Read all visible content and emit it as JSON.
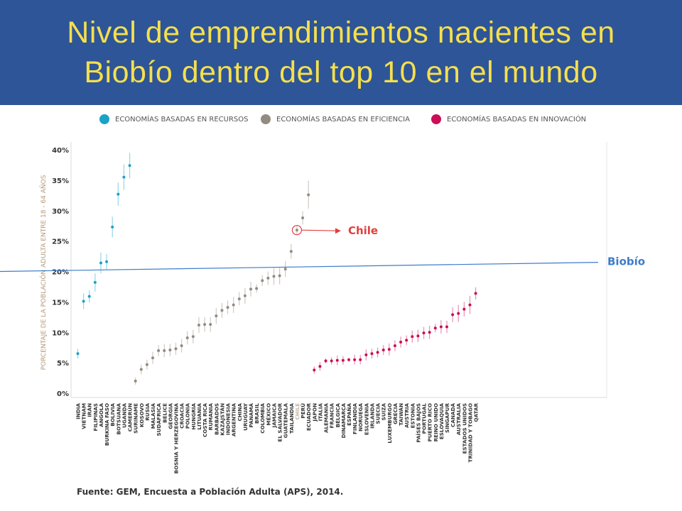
{
  "title_line1": "Nivel de emprendimientos nacientes en",
  "title_line2": "Biobío dentro del top 10 en el mundo",
  "legend": [
    {
      "label": "ECONOMÍAS BASADAS EN RECURSOS",
      "color": "#1aa3c6"
    },
    {
      "label": "ECONOMÍAS BASADAS EN EFICIENCIA",
      "color": "#948b80"
    },
    {
      "label": "ECONOMÍAS BASADAS EN INNOVACIÓN",
      "color": "#cc0e55"
    }
  ],
  "source": "Fuente: GEM, Encuesta a Población Adulta (APS), 2014.",
  "chart_data": {
    "type": "scatter",
    "ylabel": "PORCENTAJE DE LA POBLACIÓN ADULTA ENTRE 18 - 64 AÑOS",
    "ylim": [
      0,
      40
    ],
    "yticks": [
      "0%",
      "5%",
      "10%",
      "15%",
      "20%",
      "25%",
      "30%",
      "35%",
      "40%"
    ],
    "legend_position": "top",
    "series": [
      {
        "name": "ECONOMÍAS BASADAS EN RECURSOS",
        "color": "#1aa3c6",
        "points": [
          {
            "label": "INDIA",
            "value": 6.5,
            "low": 5.7,
            "high": 7.3
          },
          {
            "label": "VIETNAM",
            "value": 15.1,
            "low": 13.8,
            "high": 16.4
          },
          {
            "label": "IRÁN",
            "value": 15.9,
            "low": 14.9,
            "high": 16.9
          },
          {
            "label": "FILIPINAS",
            "value": 18.2,
            "low": 16.7,
            "high": 19.7
          },
          {
            "label": "ANGOLA",
            "value": 21.4,
            "low": 19.7,
            "high": 23.1
          },
          {
            "label": "BURKINA FASO",
            "value": 21.6,
            "low": 20.3,
            "high": 22.9
          },
          {
            "label": "BOLIVIA",
            "value": 27.3,
            "low": 25.6,
            "high": 29.0
          },
          {
            "label": "BOTSUANA",
            "value": 32.7,
            "low": 30.8,
            "high": 34.6
          },
          {
            "label": "UGANDA",
            "value": 35.5,
            "low": 33.4,
            "high": 37.6
          },
          {
            "label": "CAMERÚN",
            "value": 37.4,
            "low": 35.3,
            "high": 39.5
          }
        ]
      },
      {
        "name": "ECONOMÍAS BASADAS EN EFICIENCIA",
        "color": "#948b80",
        "points": [
          {
            "label": "SURINAME",
            "value": 2.0,
            "low": 1.4,
            "high": 2.6
          },
          {
            "label": "KOSOVO",
            "value": 3.9,
            "low": 3.1,
            "high": 4.7
          },
          {
            "label": "RUSIA",
            "value": 4.7,
            "low": 3.9,
            "high": 5.5
          },
          {
            "label": "MALASIA",
            "value": 5.8,
            "low": 4.8,
            "high": 6.8
          },
          {
            "label": "SUDÁFRICA",
            "value": 7.0,
            "low": 6.1,
            "high": 7.9
          },
          {
            "label": "BELICE",
            "value": 7.0,
            "low": 5.9,
            "high": 8.1
          },
          {
            "label": "GEORGIA",
            "value": 7.1,
            "low": 6.1,
            "high": 8.1
          },
          {
            "label": "BOSNIA Y HERZEGOVINA",
            "value": 7.3,
            "low": 6.3,
            "high": 8.3
          },
          {
            "label": "CROACIA",
            "value": 7.8,
            "low": 6.7,
            "high": 8.9
          },
          {
            "label": "POLONIA",
            "value": 9.1,
            "low": 8.0,
            "high": 10.2
          },
          {
            "label": "HUNGRÍA",
            "value": 9.3,
            "low": 8.2,
            "high": 10.4
          },
          {
            "label": "LITUANIA",
            "value": 11.2,
            "low": 9.9,
            "high": 12.5
          },
          {
            "label": "COSTA RICA",
            "value": 11.3,
            "low": 10.1,
            "high": 12.5
          },
          {
            "label": "RUMANIA",
            "value": 11.3,
            "low": 10.1,
            "high": 12.5
          },
          {
            "label": "BARBADOS",
            "value": 12.7,
            "low": 11.4,
            "high": 14.0
          },
          {
            "label": "KAZAJSTÁN",
            "value": 13.6,
            "low": 12.4,
            "high": 14.8
          },
          {
            "label": "INDONESIA",
            "value": 14.1,
            "low": 13.0,
            "high": 15.2
          },
          {
            "label": "ARGENTINA",
            "value": 14.5,
            "low": 13.2,
            "high": 15.8
          },
          {
            "label": "CHINA",
            "value": 15.5,
            "low": 14.4,
            "high": 16.6
          },
          {
            "label": "URUGUAY",
            "value": 16.0,
            "low": 14.7,
            "high": 17.3
          },
          {
            "label": "PANAMÁ",
            "value": 17.1,
            "low": 15.9,
            "high": 18.3
          },
          {
            "label": "BRASIL",
            "value": 17.2,
            "low": 16.5,
            "high": 17.9
          },
          {
            "label": "COLOMBIA",
            "value": 18.5,
            "low": 17.6,
            "high": 19.4
          },
          {
            "label": "MÉXICO",
            "value": 18.9,
            "low": 17.8,
            "high": 20.0
          },
          {
            "label": "JAMAICA",
            "value": 19.2,
            "low": 17.8,
            "high": 20.6
          },
          {
            "label": "EL SALVADOR",
            "value": 19.3,
            "low": 17.9,
            "high": 20.7
          },
          {
            "label": "GUATEMALA",
            "value": 20.4,
            "low": 19.1,
            "high": 21.7
          },
          {
            "label": "TAILANDIA",
            "value": 23.3,
            "low": 22.1,
            "high": 24.5
          },
          {
            "label": "CHILE",
            "value": 26.8,
            "low": 26.1,
            "high": 27.5
          },
          {
            "label": "PERÚ",
            "value": 28.8,
            "low": 27.7,
            "high": 29.9
          },
          {
            "label": "ECUADOR",
            "value": 32.6,
            "low": 30.3,
            "high": 34.9
          }
        ]
      },
      {
        "name": "ECONOMÍAS BASADAS EN INNOVACIÓN",
        "color": "#cc0e55",
        "points": [
          {
            "label": "JAPÓN",
            "value": 3.8,
            "low": 3.2,
            "high": 4.4
          },
          {
            "label": "ITALIA",
            "value": 4.4,
            "low": 3.7,
            "high": 5.1
          },
          {
            "label": "ALEMANIA",
            "value": 5.3,
            "low": 4.9,
            "high": 5.7
          },
          {
            "label": "FRANCIA",
            "value": 5.3,
            "low": 4.7,
            "high": 5.9
          },
          {
            "label": "BÉLGICA",
            "value": 5.4,
            "low": 4.6,
            "high": 6.2
          },
          {
            "label": "DINAMARCA",
            "value": 5.4,
            "low": 4.7,
            "high": 6.1
          },
          {
            "label": "ESPAÑA",
            "value": 5.5,
            "low": 5.2,
            "high": 5.8
          },
          {
            "label": "FINLANDIA",
            "value": 5.5,
            "low": 4.7,
            "high": 6.3
          },
          {
            "label": "NORUEGA",
            "value": 5.5,
            "low": 4.7,
            "high": 6.3
          },
          {
            "label": "ESLOVENIA",
            "value": 6.3,
            "low": 5.4,
            "high": 7.2
          },
          {
            "label": "IRLANDA",
            "value": 6.5,
            "low": 5.7,
            "high": 7.3
          },
          {
            "label": "SUECIA",
            "value": 6.7,
            "low": 5.9,
            "high": 7.5
          },
          {
            "label": "SUIZA",
            "value": 7.1,
            "low": 6.3,
            "high": 7.9
          },
          {
            "label": "LUXEMBURGO",
            "value": 7.2,
            "low": 6.2,
            "high": 8.2
          },
          {
            "label": "GRECIA",
            "value": 7.8,
            "low": 6.9,
            "high": 8.7
          },
          {
            "label": "TAIWÁN",
            "value": 8.4,
            "low": 7.5,
            "high": 9.3
          },
          {
            "label": "AUSTRIA",
            "value": 8.7,
            "low": 7.9,
            "high": 9.5
          },
          {
            "label": "ESTONIA",
            "value": 9.3,
            "low": 8.3,
            "high": 10.3
          },
          {
            "label": "PAÍSES BAJOS",
            "value": 9.4,
            "low": 8.4,
            "high": 10.4
          },
          {
            "label": "PORTUGAL",
            "value": 9.9,
            "low": 8.9,
            "high": 10.9
          },
          {
            "label": "PUERTO RICO",
            "value": 10.0,
            "low": 8.9,
            "high": 11.1
          },
          {
            "label": "REINO UNIDO",
            "value": 10.7,
            "low": 10.0,
            "high": 11.4
          },
          {
            "label": "ESLOVAQUIA",
            "value": 10.9,
            "low": 9.8,
            "high": 12.0
          },
          {
            "label": "SINGAPUR",
            "value": 10.9,
            "low": 9.9,
            "high": 11.9
          },
          {
            "label": "CANADÁ",
            "value": 12.9,
            "low": 11.7,
            "high": 14.1
          },
          {
            "label": "AUSTRALIA",
            "value": 13.1,
            "low": 11.7,
            "high": 14.5
          },
          {
            "label": "ESTADOS UNIDOS",
            "value": 13.8,
            "low": 12.6,
            "high": 15.0
          },
          {
            "label": "TRINIDAD Y TOBAGO",
            "value": 14.5,
            "low": 13.0,
            "high": 16.0
          },
          {
            "label": "QATAR",
            "value": 16.4,
            "low": 15.4,
            "high": 17.4
          }
        ]
      }
    ],
    "annotations": [
      {
        "label": "Chile",
        "target": "CHILE",
        "color": "#e0403f"
      },
      {
        "label": "Biobío",
        "value_start": 20.0,
        "value_end": 21.5,
        "color": "#3d7cc9"
      }
    ]
  }
}
